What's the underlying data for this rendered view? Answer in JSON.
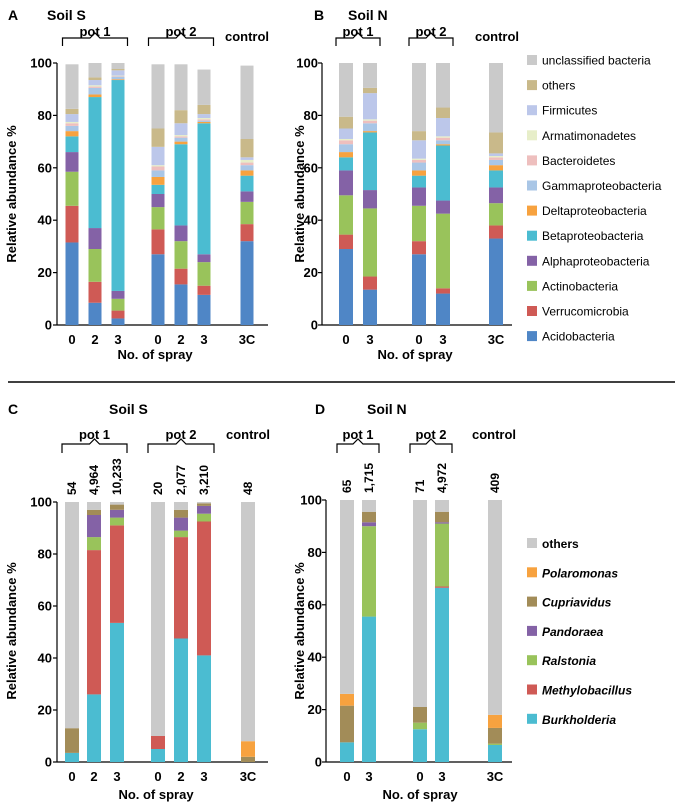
{
  "colors": {
    "unclassified bacteria": "#cacaca",
    "others_AB": "#c9b98a",
    "Firmicutes": "#bcc7ea",
    "Armatimonadetes": "#e7eec9",
    "Bacteroidetes": "#eebfbe",
    "Gammaproteobacteria": "#a9c6e6",
    "Deltaproteobacteria": "#f7a23f",
    "Betaproteobacteria": "#4bbcd1",
    "Alphaproteobacteria": "#8462a6",
    "Actinobacteria": "#99c35b",
    "Verrucomicrobia": "#cf5a55",
    "Acidobacteria": "#4f86c6",
    "others_CD": "#cacaca",
    "Polaromonas": "#f7a23f",
    "Cupriavidus": "#a28c58",
    "Pandoraea": "#8462a6",
    "Ralstonia": "#99c35b",
    "Methylobacillus": "#cf5a55",
    "Burkholderia": "#4bbcd1"
  },
  "chart_data": [
    {
      "id": "A",
      "type": "bar",
      "stacked": true,
      "panel_letter": "A",
      "title": "Soil S",
      "ylabel": "Relative abundance %",
      "xlabel": "No. of spray",
      "ylim": [
        0,
        100
      ],
      "yticks": [
        0,
        20,
        40,
        60,
        80,
        100
      ],
      "groups": [
        {
          "label": "pot 1",
          "bars": [
            0,
            1,
            2
          ]
        },
        {
          "label": "pot 2",
          "bars": [
            3,
            4,
            5
          ]
        },
        {
          "label": "control",
          "bars": [
            6
          ],
          "bracket": false
        }
      ],
      "categories": [
        "0",
        "2",
        "3",
        "0",
        "2",
        "3",
        "3C"
      ],
      "counts": [],
      "legend": [
        "unclassified bacteria",
        "others",
        "Firmicutes",
        "Armatimonadetes",
        "Bacteroidetes",
        "Gammaproteobacteria",
        "Deltaproteobacteria",
        "Betaproteobacteria",
        "Alphaproteobacteria",
        "Actinobacteria",
        "Verrucomicrobia",
        "Acidobacteria"
      ],
      "series": [
        {
          "name": "Acidobacteria",
          "color_key": "Acidobacteria",
          "values": [
            31.5,
            8.5,
            2.5,
            27,
            15.5,
            11.5,
            32
          ]
        },
        {
          "name": "Verrucomicrobia",
          "color_key": "Verrucomicrobia",
          "values": [
            14,
            8,
            3,
            9.5,
            6,
            3.5,
            6.5
          ]
        },
        {
          "name": "Actinobacteria",
          "color_key": "Actinobacteria",
          "values": [
            13,
            12.5,
            4.5,
            8.5,
            10.5,
            9,
            8.5
          ]
        },
        {
          "name": "Alphaproteobacteria",
          "color_key": "Alphaproteobacteria",
          "values": [
            7.5,
            8,
            3,
            5,
            6,
            3,
            4
          ]
        },
        {
          "name": "Betaproteobacteria",
          "color_key": "Betaproteobacteria",
          "values": [
            6,
            50,
            80.5,
            3.5,
            31,
            50,
            6
          ]
        },
        {
          "name": "Deltaproteobacteria",
          "color_key": "Deltaproteobacteria",
          "values": [
            2,
            1,
            0.3,
            3,
            1,
            0.5,
            2
          ]
        },
        {
          "name": "Gammaproteobacteria",
          "color_key": "Gammaproteobacteria",
          "values": [
            2,
            2.5,
            1,
            2.5,
            1.5,
            0.5,
            2
          ]
        },
        {
          "name": "Bacteroidetes",
          "color_key": "Bacteroidetes",
          "values": [
            1,
            0.5,
            0.2,
            1.5,
            0.5,
            0.5,
            1
          ]
        },
        {
          "name": "Armatimonadetes",
          "color_key": "Armatimonadetes",
          "values": [
            0.5,
            0.5,
            0.2,
            0.5,
            0.5,
            0.5,
            1
          ]
        },
        {
          "name": "Firmicutes",
          "color_key": "Firmicutes",
          "values": [
            3,
            2,
            2,
            7,
            4.5,
            1.5,
            1
          ]
        },
        {
          "name": "others",
          "color_key": "others_AB",
          "values": [
            2,
            1,
            0.5,
            7,
            5,
            3.5,
            7
          ]
        },
        {
          "name": "unclassified bacteria",
          "color_key": "unclassified bacteria",
          "values": [
            17,
            5.5,
            2.3,
            24.5,
            17.5,
            13.5,
            28
          ]
        }
      ]
    },
    {
      "id": "B",
      "type": "bar",
      "stacked": true,
      "panel_letter": "B",
      "title": "Soil N",
      "ylabel": "Relative abundance %",
      "xlabel": "No. of spray",
      "ylim": [
        0,
        100
      ],
      "yticks": [
        0,
        20,
        40,
        60,
        80,
        100
      ],
      "groups": [
        {
          "label": "pot 1",
          "bars": [
            0,
            1
          ]
        },
        {
          "label": "pot 2",
          "bars": [
            2,
            3
          ]
        },
        {
          "label": "control",
          "bars": [
            4
          ],
          "bracket": false
        }
      ],
      "categories": [
        "0",
        "3",
        "0",
        "3",
        "3C"
      ],
      "counts": [],
      "series": [
        {
          "name": "Acidobacteria",
          "color_key": "Acidobacteria",
          "values": [
            29,
            13.5,
            27,
            12,
            33
          ]
        },
        {
          "name": "Verrucomicrobia",
          "color_key": "Verrucomicrobia",
          "values": [
            5.5,
            5,
            5,
            2,
            5
          ]
        },
        {
          "name": "Actinobacteria",
          "color_key": "Actinobacteria",
          "values": [
            15,
            26,
            13.5,
            28.5,
            8.5
          ]
        },
        {
          "name": "Alphaproteobacteria",
          "color_key": "Alphaproteobacteria",
          "values": [
            9.5,
            7,
            7,
            5,
            6
          ]
        },
        {
          "name": "Betaproteobacteria",
          "color_key": "Betaproteobacteria",
          "values": [
            5,
            22,
            4.5,
            21,
            6.5
          ]
        },
        {
          "name": "Deltaproteobacteria",
          "color_key": "Deltaproteobacteria",
          "values": [
            2,
            0.5,
            2,
            0.5,
            2
          ]
        },
        {
          "name": "Gammaproteobacteria",
          "color_key": "Gammaproteobacteria",
          "values": [
            3,
            3,
            3,
            1.5,
            2
          ]
        },
        {
          "name": "Bacteroidetes",
          "color_key": "Bacteroidetes",
          "values": [
            1.5,
            1,
            1,
            1,
            1
          ]
        },
        {
          "name": "Armatimonadetes",
          "color_key": "Armatimonadetes",
          "values": [
            0.5,
            0.5,
            0.5,
            0.5,
            0.5
          ]
        },
        {
          "name": "Firmicutes",
          "color_key": "Firmicutes",
          "values": [
            4,
            10,
            7,
            7,
            1
          ]
        },
        {
          "name": "others",
          "color_key": "others_AB",
          "values": [
            4.5,
            2,
            3.5,
            4,
            8
          ]
        },
        {
          "name": "unclassified bacteria",
          "color_key": "unclassified bacteria",
          "values": [
            20.5,
            9.5,
            26,
            17,
            26.5
          ]
        }
      ]
    },
    {
      "id": "C",
      "type": "bar",
      "stacked": true,
      "panel_letter": "C",
      "title": "Soil S",
      "ylabel": "Relative abundance %",
      "xlabel": "No. of spray",
      "ylim": [
        0,
        100
      ],
      "yticks": [
        0,
        20,
        40,
        60,
        80,
        100
      ],
      "groups": [
        {
          "label": "pot 1",
          "bars": [
            0,
            1,
            2
          ]
        },
        {
          "label": "pot 2",
          "bars": [
            3,
            4,
            5
          ]
        },
        {
          "label": "control",
          "bars": [
            6
          ],
          "bracket": false
        }
      ],
      "categories": [
        "0",
        "2",
        "3",
        "0",
        "2",
        "3",
        "3C"
      ],
      "counts": [
        "54",
        "4,964",
        "10,233",
        "20",
        "2,077",
        "3,210",
        "48"
      ],
      "legend": [
        "others",
        "Polaromonas",
        "Cupriavidus",
        "Pandoraea",
        "Ralstonia",
        "Methylobacillus",
        "Burkholderia"
      ],
      "series": [
        {
          "name": "Burkholderia",
          "color_key": "Burkholderia",
          "values": [
            3.5,
            26,
            53.5,
            5,
            47.5,
            41,
            0
          ]
        },
        {
          "name": "Methylobacillus",
          "color_key": "Methylobacillus",
          "values": [
            0,
            55.5,
            37.5,
            5,
            39,
            51.5,
            0
          ]
        },
        {
          "name": "Ralstonia",
          "color_key": "Ralstonia",
          "values": [
            0,
            5,
            3,
            0,
            2.5,
            3,
            0
          ]
        },
        {
          "name": "Pandoraea",
          "color_key": "Pandoraea",
          "values": [
            0,
            8.5,
            3,
            0,
            5,
            3,
            0
          ]
        },
        {
          "name": "Cupriavidus",
          "color_key": "Cupriavidus",
          "values": [
            9.5,
            2,
            2,
            0,
            3,
            1,
            2
          ]
        },
        {
          "name": "Polaromonas",
          "color_key": "Polaromonas",
          "values": [
            0,
            0,
            0,
            0,
            0,
            0,
            6
          ]
        },
        {
          "name": "others",
          "color_key": "others_CD",
          "values": [
            87,
            3,
            1,
            90,
            3,
            0.5,
            92
          ]
        }
      ]
    },
    {
      "id": "D",
      "type": "bar",
      "stacked": true,
      "panel_letter": "D",
      "title": "Soil N",
      "ylabel": "Relative abundance %",
      "xlabel": "No. of spray",
      "ylim": [
        0,
        100
      ],
      "yticks": [
        0,
        20,
        40,
        60,
        80,
        100
      ],
      "groups": [
        {
          "label": "pot 1",
          "bars": [
            0,
            1
          ]
        },
        {
          "label": "pot 2",
          "bars": [
            2,
            3
          ]
        },
        {
          "label": "control",
          "bars": [
            4
          ],
          "bracket": false
        }
      ],
      "categories": [
        "0",
        "3",
        "0",
        "3",
        "3C"
      ],
      "counts": [
        "65",
        "1,715",
        "71",
        "4,972",
        "409"
      ],
      "series": [
        {
          "name": "Burkholderia",
          "color_key": "Burkholderia",
          "values": [
            7.5,
            55.5,
            12.5,
            66.5,
            6.5
          ]
        },
        {
          "name": "Methylobacillus",
          "color_key": "Methylobacillus",
          "values": [
            0,
            0,
            0,
            0.5,
            0
          ]
        },
        {
          "name": "Ralstonia",
          "color_key": "Ralstonia",
          "values": [
            0,
            34.5,
            2.5,
            24,
            0.5
          ]
        },
        {
          "name": "Pandoraea",
          "color_key": "Pandoraea",
          "values": [
            0,
            1.5,
            0,
            0.5,
            0
          ]
        },
        {
          "name": "Cupriavidus",
          "color_key": "Cupriavidus",
          "values": [
            14,
            4,
            6,
            4,
            6
          ]
        },
        {
          "name": "Polaromonas",
          "color_key": "Polaromonas",
          "values": [
            4.5,
            0,
            0,
            0,
            5
          ]
        },
        {
          "name": "others",
          "color_key": "others_CD",
          "values": [
            74,
            4.5,
            79,
            4.5,
            82
          ]
        }
      ]
    }
  ]
}
